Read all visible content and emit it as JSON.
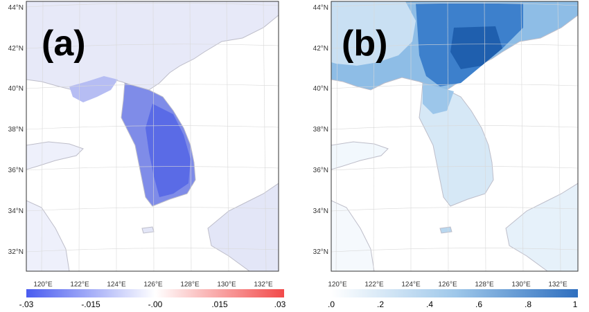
{
  "panels": [
    {
      "label": "(a)",
      "lat_labels": [
        "44°N",
        "42°N",
        "40°N",
        "38°N",
        "36°N",
        "34°N",
        "32°N"
      ],
      "lon_labels": [
        "120°E",
        "122°E",
        "124°E",
        "126°E",
        "128°E",
        "130°E",
        "132°E"
      ],
      "colorbar": {
        "ticks": [
          "-.03",
          "-.015",
          "-.00",
          ".015",
          ".03"
        ],
        "colors": [
          "#4a5cf0",
          "#ffffff",
          "#f24a4a"
        ]
      }
    },
    {
      "label": "(b)",
      "lat_labels": [
        "44°N",
        "42°N",
        "40°N",
        "38°N",
        "36°N",
        "34°N",
        "32°N"
      ],
      "lon_labels": [
        "120°E",
        "122°E",
        "124°E",
        "126°E",
        "128°E",
        "130°E",
        "132°E"
      ],
      "colorbar": {
        "ticks": [
          ".0",
          ".2",
          ".4",
          ".6",
          ".8",
          "1"
        ],
        "colors": [
          "#ffffff",
          "#9fc8ea",
          "#2f6fbf"
        ]
      }
    }
  ]
}
